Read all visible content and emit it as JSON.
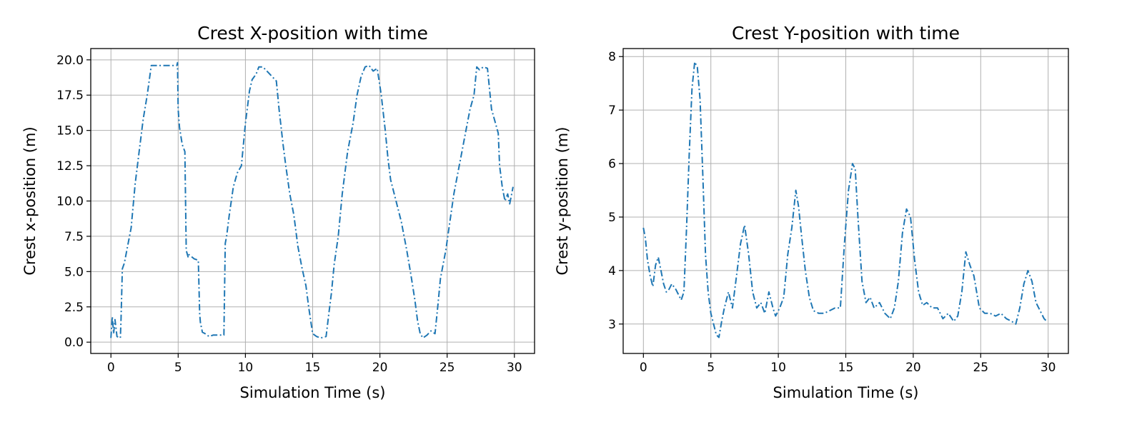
{
  "chart_data": [
    {
      "type": "line",
      "title": "Crest X-position with time",
      "xlabel": "Simulation Time (s)",
      "ylabel": "Crest x-position (m)",
      "xlim": [
        -1.5,
        31.5
      ],
      "ylim": [
        -0.8,
        20.8
      ],
      "xticks": [
        0,
        5,
        10,
        15,
        20,
        25,
        30
      ],
      "xtick_labels": [
        "0",
        "5",
        "10",
        "15",
        "20",
        "25",
        "30"
      ],
      "yticks": [
        0,
        2.5,
        5,
        7.5,
        10,
        12.5,
        15,
        17.5,
        20
      ],
      "ytick_labels": [
        "0.0",
        "2.5",
        "5.0",
        "7.5",
        "10.0",
        "12.5",
        "15.0",
        "17.5",
        "20.0"
      ],
      "grid": true,
      "color": "#1f77b4",
      "linestyle": "dash-dot",
      "series": [
        {
          "x": [
            0,
            0.1,
            0.2,
            0.3,
            0.45,
            0.7,
            0.75,
            0.85,
            1.0,
            1.2,
            1.5,
            1.8,
            2.1,
            2.4,
            2.7,
            3.0,
            3.05,
            4.9,
            4.95,
            5.0,
            5.1,
            5.3,
            5.5,
            5.6,
            5.75,
            5.8,
            6.2,
            6.5,
            6.6,
            6.65,
            6.8,
            7.0,
            7.3,
            7.6,
            8.0,
            8.4,
            8.5,
            8.6,
            8.8,
            9.1,
            9.4,
            9.7,
            10.0,
            10.3,
            10.5,
            10.8,
            11.0,
            11.3,
            11.6,
            12.0,
            12.3,
            12.5,
            12.8,
            13.0,
            13.3,
            13.6,
            13.9,
            14.2,
            14.5,
            14.7,
            15.0,
            15.3,
            15.6,
            16.0,
            16.2,
            16.4,
            16.6,
            16.9,
            17.2,
            17.6,
            18.0,
            18.3,
            18.6,
            18.9,
            19.2,
            19.5,
            19.8,
            20.1,
            20.4,
            20.6,
            20.8,
            21.2,
            21.6,
            22.0,
            22.3,
            22.6,
            22.8,
            23.0,
            23.2,
            23.5,
            23.8,
            24.1,
            24.3,
            24.5,
            24.7,
            24.9,
            25.2,
            25.5,
            25.8,
            26.1,
            26.4,
            26.7,
            27.0,
            27.2,
            27.4,
            27.7,
            28.0,
            28.3,
            28.6,
            28.8,
            28.9,
            29.1,
            29.3,
            29.5,
            29.65,
            29.8,
            29.9
          ],
          "y": [
            0.3,
            1.8,
            0.6,
            1.6,
            0.4,
            0.3,
            1.5,
            5.2,
            5.6,
            6.6,
            8.1,
            11.2,
            13.5,
            15.8,
            17.5,
            19.6,
            19.6,
            19.6,
            19.8,
            16.5,
            15.2,
            14.0,
            13.5,
            6.5,
            6.0,
            6.2,
            5.9,
            5.8,
            2.0,
            1.4,
            0.7,
            0.6,
            0.4,
            0.5,
            0.5,
            0.5,
            7.0,
            7.5,
            9.0,
            11.0,
            12.0,
            12.5,
            15.5,
            17.8,
            18.6,
            19.0,
            19.5,
            19.5,
            19.2,
            18.8,
            18.5,
            16.5,
            14.0,
            12.5,
            10.5,
            9.0,
            6.8,
            5.3,
            4.0,
            2.5,
            0.6,
            0.4,
            0.3,
            0.4,
            2.0,
            3.5,
            5.5,
            7.5,
            10.5,
            13.5,
            15.5,
            17.5,
            18.8,
            19.5,
            19.6,
            19.2,
            19.4,
            17.5,
            15.0,
            13.0,
            11.5,
            10.0,
            8.5,
            6.5,
            4.8,
            3.0,
            1.5,
            0.6,
            0.3,
            0.5,
            0.8,
            0.6,
            2.5,
            4.5,
            5.5,
            6.5,
            8.5,
            10.5,
            12.0,
            13.5,
            15.0,
            16.5,
            17.5,
            19.5,
            19.3,
            19.5,
            19.4,
            16.5,
            15.5,
            14.8,
            12.5,
            11.0,
            10.0,
            10.5,
            9.8,
            10.5,
            11.0
          ]
        }
      ]
    },
    {
      "type": "line",
      "title": "Crest Y-position with time",
      "xlabel": "Simulation Time (s)",
      "ylabel": "Crest y-position (m)",
      "xlim": [
        -1.5,
        31.5
      ],
      "ylim": [
        2.45,
        8.15
      ],
      "xticks": [
        0,
        5,
        10,
        15,
        20,
        25,
        30
      ],
      "xtick_labels": [
        "0",
        "5",
        "10",
        "15",
        "20",
        "25",
        "30"
      ],
      "yticks": [
        3,
        4,
        5,
        6,
        7,
        8
      ],
      "ytick_labels": [
        "3",
        "4",
        "5",
        "6",
        "7",
        "8"
      ],
      "grid": true,
      "color": "#1f77b4",
      "linestyle": "dash-dot",
      "series": [
        {
          "x": [
            0,
            0.15,
            0.3,
            0.5,
            0.7,
            0.9,
            1.1,
            1.3,
            1.5,
            1.7,
            1.9,
            2.1,
            2.4,
            2.6,
            2.8,
            3.0,
            3.2,
            3.4,
            3.6,
            3.8,
            4.0,
            4.2,
            4.4,
            4.6,
            4.8,
            5.0,
            5.2,
            5.4,
            5.6,
            5.8,
            6.0,
            6.3,
            6.6,
            6.9,
            7.2,
            7.5,
            7.8,
            8.1,
            8.4,
            8.7,
            9.0,
            9.3,
            9.6,
            9.8,
            10.1,
            10.4,
            10.7,
            11.0,
            11.3,
            11.5,
            11.7,
            12.0,
            12.3,
            12.6,
            13.0,
            13.4,
            13.8,
            14.2,
            14.6,
            14.9,
            15.2,
            15.5,
            15.7,
            15.9,
            16.2,
            16.5,
            16.8,
            17.1,
            17.5,
            17.9,
            18.3,
            18.6,
            18.9,
            19.2,
            19.5,
            19.8,
            20.1,
            20.4,
            20.7,
            21.0,
            21.4,
            21.8,
            22.2,
            22.6,
            23.0,
            23.3,
            23.6,
            23.9,
            24.2,
            24.5,
            24.9,
            25.3,
            25.7,
            26.1,
            26.5,
            26.9,
            27.3,
            27.6,
            27.9,
            28.2,
            28.5,
            28.8,
            29.1,
            29.4,
            29.7,
            29.9
          ],
          "y": [
            4.8,
            4.6,
            4.2,
            3.9,
            3.7,
            4.1,
            4.25,
            4.0,
            3.75,
            3.6,
            3.65,
            3.75,
            3.65,
            3.55,
            3.45,
            3.6,
            4.8,
            6.2,
            7.4,
            7.9,
            7.8,
            7.2,
            5.8,
            4.3,
            3.6,
            3.2,
            3.0,
            2.8,
            2.75,
            3.05,
            3.3,
            3.6,
            3.3,
            3.9,
            4.5,
            4.85,
            4.3,
            3.6,
            3.3,
            3.4,
            3.2,
            3.6,
            3.3,
            3.15,
            3.3,
            3.5,
            4.3,
            4.8,
            5.5,
            5.2,
            4.7,
            4.0,
            3.5,
            3.25,
            3.2,
            3.2,
            3.25,
            3.3,
            3.3,
            4.5,
            5.5,
            6.0,
            5.9,
            5.0,
            3.8,
            3.4,
            3.5,
            3.3,
            3.4,
            3.2,
            3.1,
            3.3,
            3.8,
            4.7,
            5.15,
            5.0,
            4.2,
            3.6,
            3.35,
            3.4,
            3.3,
            3.3,
            3.1,
            3.2,
            3.05,
            3.15,
            3.6,
            4.35,
            4.1,
            3.9,
            3.3,
            3.2,
            3.2,
            3.15,
            3.2,
            3.1,
            3.05,
            3.0,
            3.3,
            3.75,
            4.0,
            3.8,
            3.4,
            3.25,
            3.1,
            3.05
          ]
        }
      ]
    }
  ]
}
